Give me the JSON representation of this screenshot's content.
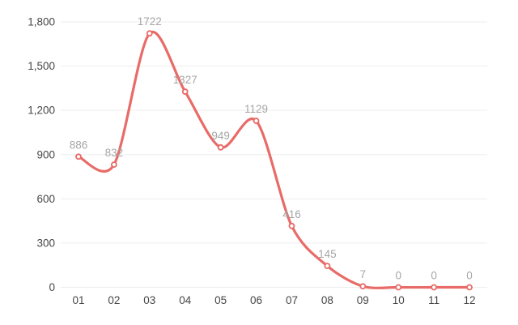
{
  "chart": {
    "colors": {
      "line": "#e86b67",
      "marker_fill": "#ffffff",
      "marker_stroke": "#e86b67",
      "data_label": "#a6a6a6",
      "axis_label": "#464646",
      "grid_line": "#ededed",
      "background": "#ffffff"
    }
  },
  "chart_data": {
    "type": "line",
    "smooth": true,
    "title": "",
    "xlabel": "",
    "ylabel": "",
    "categories": [
      "01",
      "02",
      "03",
      "04",
      "05",
      "06",
      "07",
      "08",
      "09",
      "10",
      "11",
      "12"
    ],
    "values": [
      886,
      832,
      1722,
      1327,
      949,
      1129,
      416,
      145,
      7,
      0,
      0,
      0
    ],
    "data_labels": [
      "886",
      "832",
      "1722",
      "1327",
      "949",
      "1129",
      "416",
      "145",
      "7",
      "0",
      "0",
      "0"
    ],
    "ylim": [
      0,
      1800
    ],
    "y_ticks": [
      0,
      300,
      600,
      900,
      1200,
      1500,
      1800
    ],
    "y_tick_labels": [
      "0",
      "300",
      "600",
      "900",
      "1,200",
      "1,500",
      "1,800"
    ],
    "grid": "horizontal",
    "legend": "none",
    "marker": "circle-open"
  }
}
